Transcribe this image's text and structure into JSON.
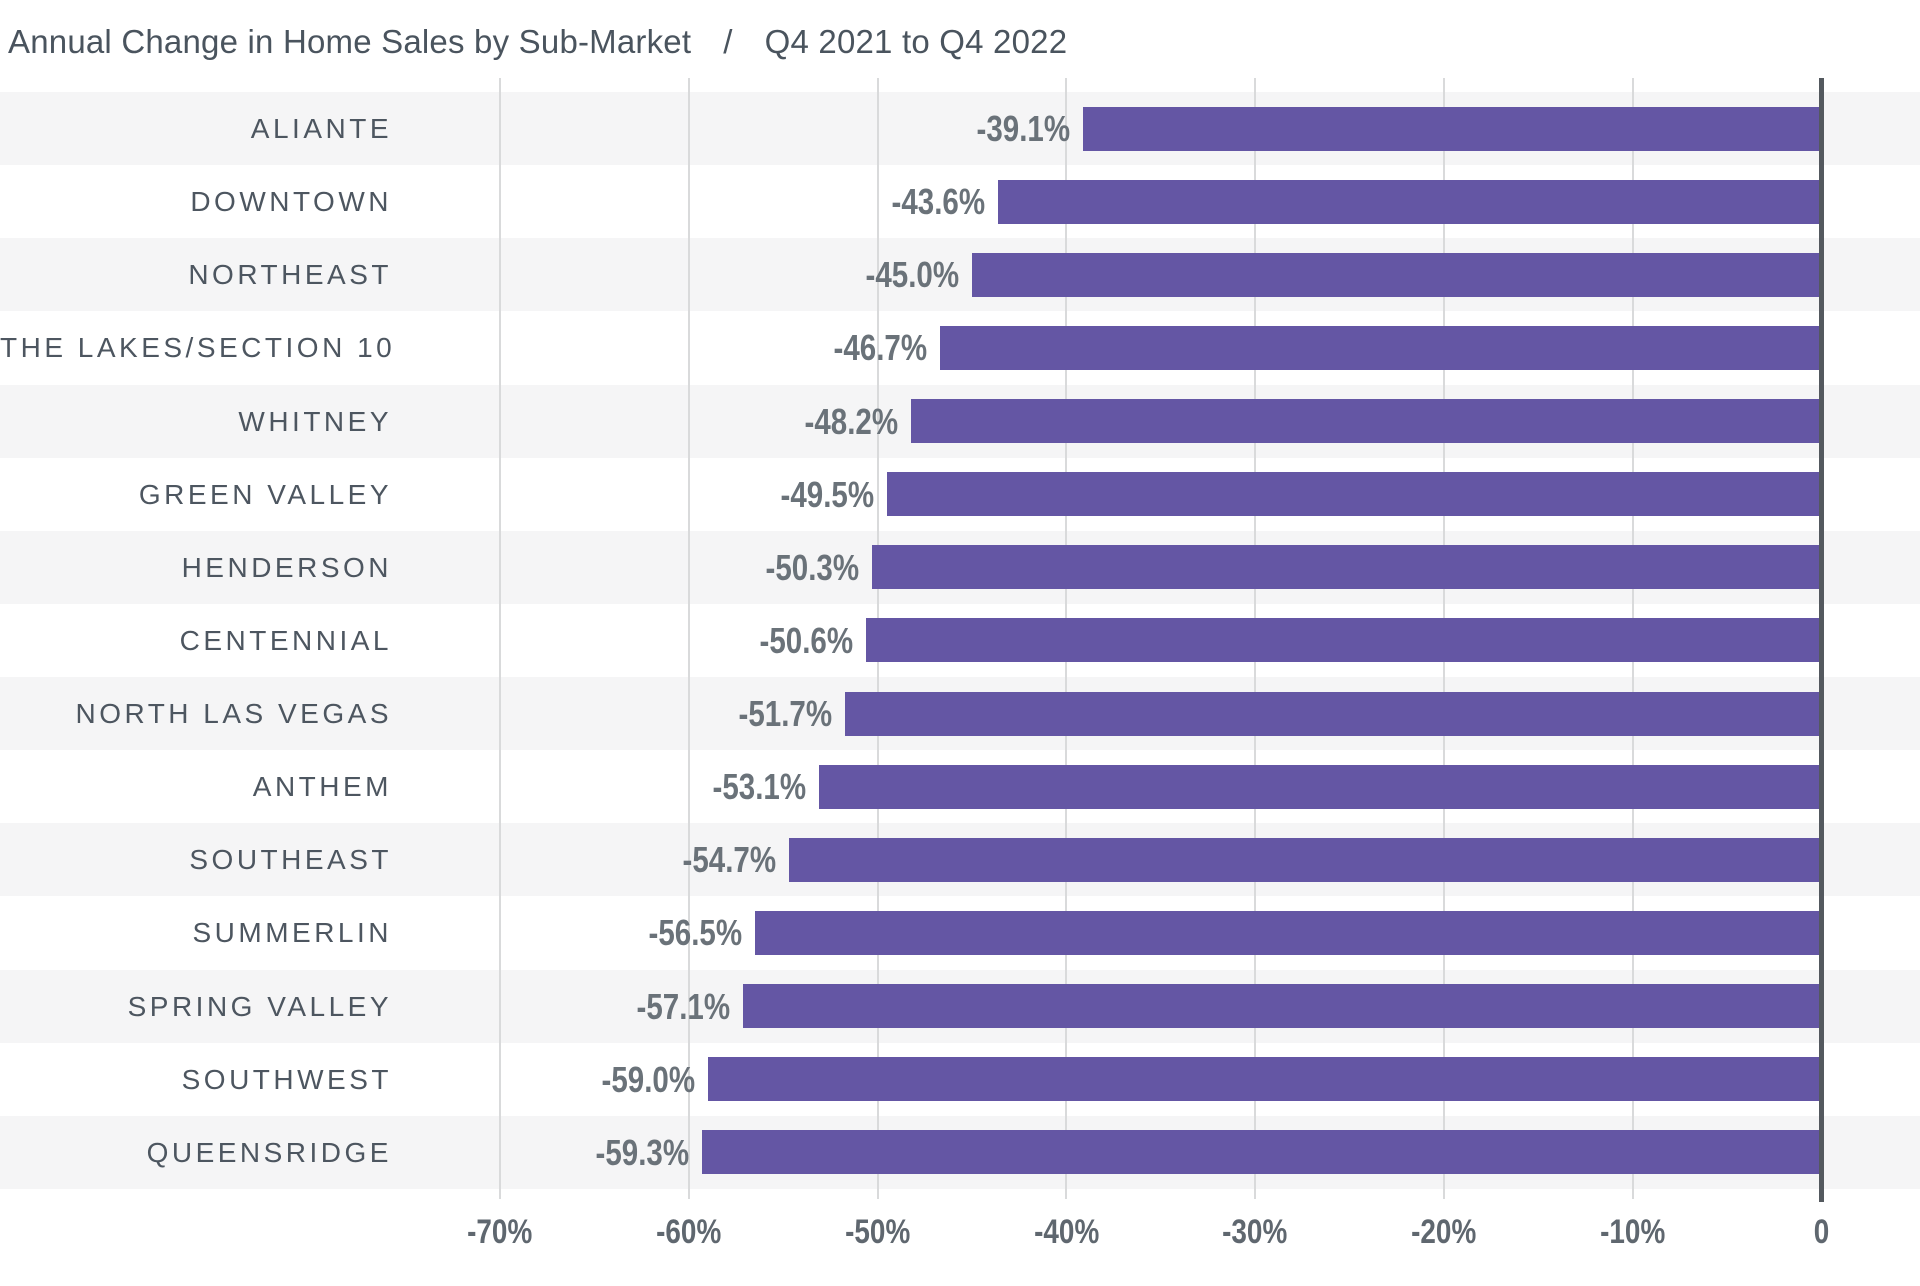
{
  "title": {
    "main": "Annual Change in Home Sales by Sub-Market",
    "separator": "/",
    "period": "Q4 2021 to Q4 2022"
  },
  "colors": {
    "bar": "#6456a4",
    "row_stripe": "#f5f5f6",
    "gridline": "#d9dadb",
    "zero_line": "#54595f",
    "title_text": "#4a545e",
    "category_text": "#4d5660",
    "value_text": "#6a7279",
    "axis_text": "#5f676f",
    "background": "#ffffff"
  },
  "chart_data": {
    "type": "bar",
    "orientation": "horizontal",
    "title": "Annual Change in Home Sales by Sub-Market / Q4 2021 to Q4 2022",
    "categories": [
      "ALIANTE",
      "DOWNTOWN",
      "NORTHEAST",
      "THE LAKES/SECTION 10",
      "WHITNEY",
      "GREEN VALLEY",
      "HENDERSON",
      "CENTENNIAL",
      "NORTH LAS VEGAS",
      "ANTHEM",
      "SOUTHEAST",
      "SUMMERLIN",
      "SPRING VALLEY",
      "SOUTHWEST",
      "QUEENSRIDGE"
    ],
    "values": [
      -39.1,
      -43.6,
      -45.0,
      -46.7,
      -48.2,
      -49.5,
      -50.3,
      -50.6,
      -51.7,
      -53.1,
      -54.7,
      -56.5,
      -57.1,
      -59.0,
      -59.3
    ],
    "value_labels": [
      "-39.1%",
      "-43.6%",
      "-45.0%",
      "-46.7%",
      "-48.2%",
      "-49.5%",
      "-50.3%",
      "-50.6%",
      "-51.7%",
      "-53.1%",
      "-54.7%",
      "-56.5%",
      "-57.1%",
      "-59.0%",
      "-59.3%"
    ],
    "xlabel": "",
    "ylabel": "",
    "x_axis": {
      "min": -75,
      "max": 0,
      "tick_values": [
        -70,
        -60,
        -50,
        -40,
        -30,
        -20,
        -10,
        0
      ],
      "tick_labels": [
        "-70%",
        "-60%",
        "-50%",
        "-40%",
        "-30%",
        "-20%",
        "-10%",
        "0"
      ],
      "grid": true
    },
    "legend": "none",
    "row_striping": "odd rows shaded"
  }
}
